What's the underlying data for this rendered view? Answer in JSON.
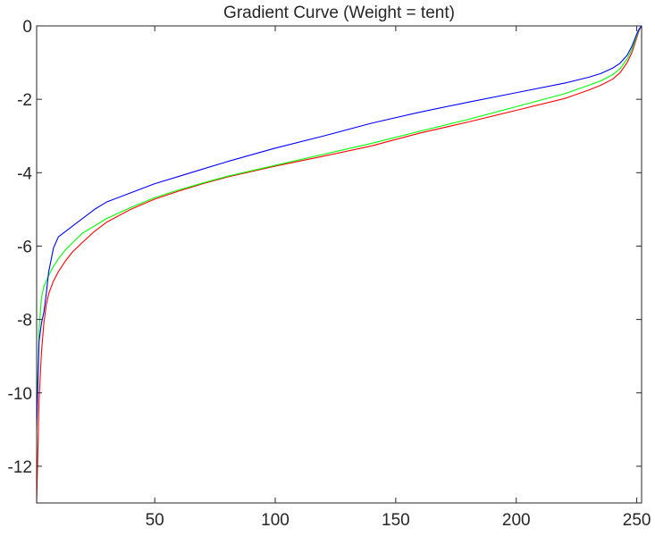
{
  "chart_data": {
    "type": "line",
    "title": "Gradient Curve (Weight = tent)",
    "xlabel": "",
    "ylabel": "",
    "xlim": [
      1,
      252
    ],
    "ylim": [
      -13,
      0
    ],
    "xticks": [
      50,
      100,
      150,
      200,
      250
    ],
    "yticks": [
      0,
      -2,
      -4,
      -6,
      -8,
      -10,
      -12
    ],
    "xtick_labels": [
      "50",
      "100",
      "150",
      "200",
      "250"
    ],
    "ytick_labels": [
      "0",
      "-2",
      "-4",
      "-6",
      "-8",
      "-10",
      "-12"
    ],
    "grid": false,
    "legend": "none",
    "series": [
      {
        "color": "#ff0000",
        "x": [
          1,
          2,
          3,
          4,
          5,
          6,
          8,
          10,
          13,
          16,
          20,
          25,
          30,
          40,
          50,
          60,
          70,
          80,
          100,
          120,
          140,
          160,
          180,
          200,
          220,
          230,
          235,
          240,
          243,
          246,
          248,
          250,
          251,
          252
        ],
        "y": [
          -13.0,
          -10.2,
          -8.9,
          -8.1,
          -7.6,
          -7.3,
          -6.95,
          -6.7,
          -6.4,
          -6.15,
          -5.9,
          -5.6,
          -5.35,
          -5.0,
          -4.72,
          -4.5,
          -4.3,
          -4.12,
          -3.82,
          -3.55,
          -3.27,
          -2.92,
          -2.62,
          -2.3,
          -1.98,
          -1.75,
          -1.62,
          -1.45,
          -1.28,
          -1.0,
          -0.72,
          -0.32,
          -0.12,
          0.0
        ]
      },
      {
        "color": "#00ff00",
        "x": [
          1,
          2,
          3,
          4,
          5,
          6,
          8,
          10,
          13,
          16,
          20,
          25,
          30,
          40,
          50,
          60,
          70,
          80,
          100,
          120,
          140,
          160,
          180,
          200,
          220,
          230,
          235,
          240,
          243,
          246,
          248,
          250,
          251,
          252
        ],
        "y": [
          -10.7,
          -8.3,
          -7.4,
          -7.1,
          -6.95,
          -6.8,
          -6.55,
          -6.35,
          -6.1,
          -5.9,
          -5.65,
          -5.45,
          -5.25,
          -4.95,
          -4.68,
          -4.47,
          -4.28,
          -4.1,
          -3.8,
          -3.5,
          -3.2,
          -2.87,
          -2.55,
          -2.2,
          -1.85,
          -1.62,
          -1.5,
          -1.33,
          -1.17,
          -0.9,
          -0.63,
          -0.27,
          -0.1,
          0.0
        ]
      },
      {
        "color": "#0000ff",
        "x": [
          1,
          2,
          3,
          4,
          5,
          6,
          8,
          10,
          13,
          16,
          20,
          25,
          30,
          40,
          50,
          60,
          70,
          80,
          100,
          120,
          140,
          160,
          180,
          200,
          220,
          230,
          235,
          240,
          243,
          246,
          248,
          250,
          251,
          252
        ],
        "y": [
          -11.0,
          -8.6,
          -8.1,
          -7.8,
          -7.3,
          -6.7,
          -6.05,
          -5.75,
          -5.6,
          -5.45,
          -5.25,
          -5.0,
          -4.8,
          -4.55,
          -4.3,
          -4.1,
          -3.9,
          -3.7,
          -3.33,
          -3.0,
          -2.65,
          -2.35,
          -2.08,
          -1.82,
          -1.56,
          -1.4,
          -1.3,
          -1.15,
          -1.02,
          -0.8,
          -0.55,
          -0.22,
          -0.08,
          0.0
        ]
      }
    ]
  }
}
